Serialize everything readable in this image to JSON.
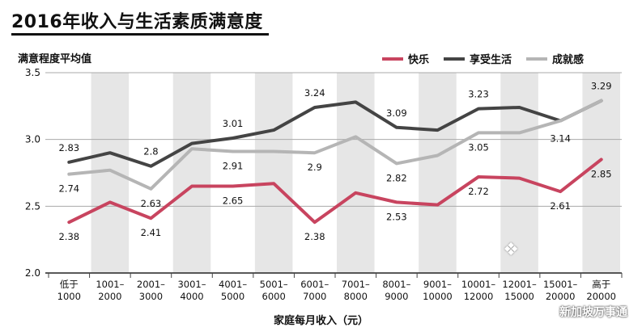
{
  "title": "2016年收入与生活素质满意度",
  "chart_data": {
    "type": "line",
    "ylabel": "满意程度平均值",
    "xlabel": "家庭每月收入（元）",
    "ylim": [
      2.0,
      3.5
    ],
    "yticks": [
      "2.0",
      "2.5",
      "3.0",
      "3.5"
    ],
    "legend_position": "top-right",
    "categories": [
      [
        "低于",
        "1000"
      ],
      [
        "1001–",
        "2000"
      ],
      [
        "2001–",
        "3000"
      ],
      [
        "3001–",
        "4000"
      ],
      [
        "4001–",
        "5000"
      ],
      [
        "5001–",
        "6000"
      ],
      [
        "6001–",
        "7000"
      ],
      [
        "7001–",
        "8000"
      ],
      [
        "8001–",
        "9000"
      ],
      [
        "9001–",
        "10000"
      ],
      [
        "10001–",
        "12000"
      ],
      [
        "12001–",
        "15000"
      ],
      [
        "15001–",
        "20000"
      ],
      [
        "高于",
        "20000"
      ]
    ],
    "series": [
      {
        "name": "快乐",
        "color": "#c8445f",
        "values": [
          2.38,
          2.53,
          2.41,
          2.65,
          2.65,
          2.67,
          2.38,
          2.6,
          2.53,
          2.51,
          2.72,
          2.71,
          2.61,
          2.85
        ],
        "labeled": [
          0,
          2,
          4,
          6,
          8,
          10,
          12,
          13
        ]
      },
      {
        "name": "享受生活",
        "color": "#444444",
        "values": [
          2.83,
          2.9,
          2.8,
          2.97,
          3.01,
          3.07,
          3.24,
          3.28,
          3.09,
          3.07,
          3.23,
          3.24,
          3.14,
          3.29
        ],
        "labeled": [
          0,
          2,
          4,
          6,
          8,
          10,
          12
        ]
      },
      {
        "name": "成就感",
        "color": "#b5b5b5",
        "values": [
          2.74,
          2.77,
          2.63,
          2.93,
          2.91,
          2.91,
          2.9,
          3.02,
          2.82,
          2.88,
          3.05,
          3.05,
          3.14,
          3.29
        ],
        "labeled": [
          0,
          2,
          4,
          6,
          8,
          10,
          13
        ]
      }
    ],
    "data_labels": [
      {
        "series": 0,
        "index": 0,
        "text": "2.38"
      },
      {
        "series": 0,
        "index": 2,
        "text": "2.41"
      },
      {
        "series": 0,
        "index": 4,
        "text": "2.65"
      },
      {
        "series": 0,
        "index": 6,
        "text": "2.38"
      },
      {
        "series": 0,
        "index": 8,
        "text": "2.53"
      },
      {
        "series": 0,
        "index": 10,
        "text": "2.72"
      },
      {
        "series": 0,
        "index": 12,
        "text": "2.61"
      },
      {
        "series": 0,
        "index": 13,
        "text": "2.85"
      },
      {
        "series": 1,
        "index": 0,
        "text": "2.83"
      },
      {
        "series": 1,
        "index": 2,
        "text": "2.8"
      },
      {
        "series": 1,
        "index": 4,
        "text": "3.01"
      },
      {
        "series": 1,
        "index": 6,
        "text": "3.24"
      },
      {
        "series": 1,
        "index": 8,
        "text": "3.09"
      },
      {
        "series": 1,
        "index": 10,
        "text": "3.23"
      },
      {
        "series": 1,
        "index": 12,
        "text": "3.14"
      },
      {
        "series": 2,
        "index": 0,
        "text": "2.74"
      },
      {
        "series": 2,
        "index": 2,
        "text": "2.63"
      },
      {
        "series": 2,
        "index": 4,
        "text": "2.91"
      },
      {
        "series": 2,
        "index": 6,
        "text": "2.9"
      },
      {
        "series": 2,
        "index": 8,
        "text": "2.82"
      },
      {
        "series": 2,
        "index": 10,
        "text": "3.05"
      },
      {
        "series": 2,
        "index": 13,
        "text": "3.29"
      }
    ]
  },
  "watermark": "新加坡万事通"
}
